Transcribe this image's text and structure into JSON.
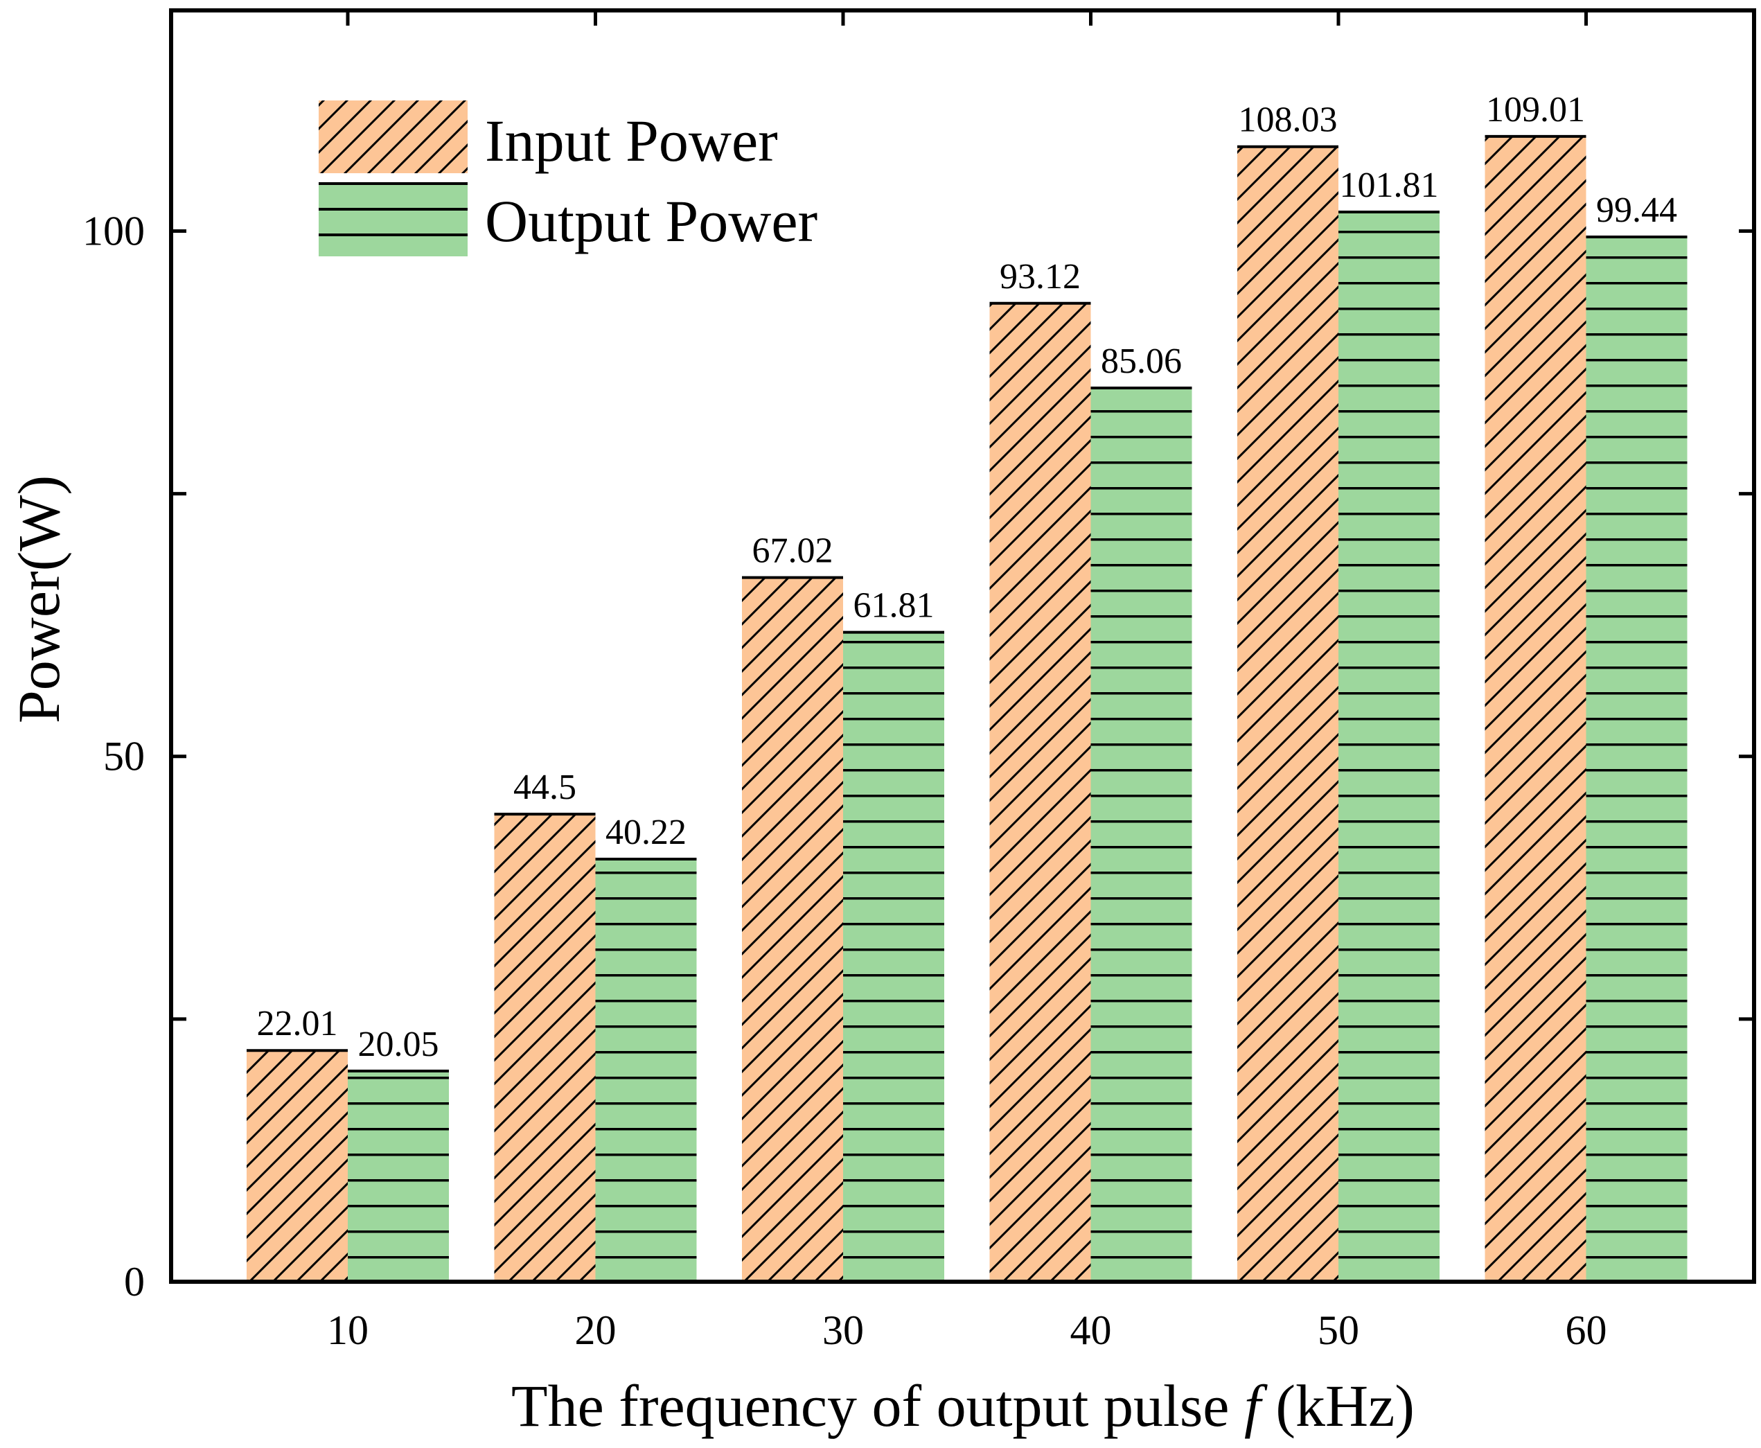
{
  "chart_data": {
    "type": "bar",
    "title": "",
    "xlabel_prefix": "The frequency of output pulse ",
    "xlabel_var": "f",
    "xlabel_suffix": " (kHz)",
    "ylabel": "Power(W)",
    "categories": [
      "10",
      "20",
      "30",
      "40",
      "50",
      "60"
    ],
    "ylim": [
      0,
      121
    ],
    "yticks_labeled": [
      0,
      50,
      100
    ],
    "yticks_minor": [
      25,
      75
    ],
    "series": [
      {
        "name": "Input Power",
        "values": [
          22.01,
          44.5,
          67.02,
          93.12,
          108.03,
          109.01
        ],
        "labels": [
          "22.01",
          "44.5",
          "67.02",
          "93.12",
          "108.03",
          "109.01"
        ],
        "color": "#fdc596",
        "pattern": "diagonal-hatch"
      },
      {
        "name": "Output Power",
        "values": [
          20.05,
          40.22,
          61.81,
          85.06,
          101.81,
          99.44
        ],
        "labels": [
          "20.05",
          "40.22",
          "61.81",
          "85.06",
          "101.81",
          "99.44"
        ],
        "color": "#9dd79d",
        "pattern": "horizontal-lines"
      }
    ],
    "legend_position": "top-left"
  }
}
